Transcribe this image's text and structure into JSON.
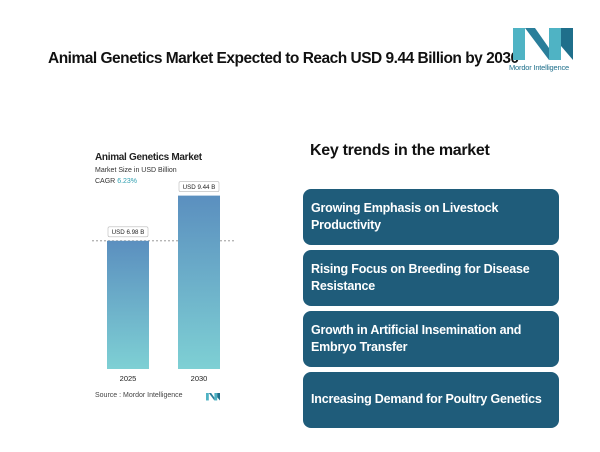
{
  "headline": "Animal Genetics Market Expected to Reach USD 9.44 Billion by 2030",
  "brand": {
    "name": "Mordor Intelligence",
    "color": "#1f6f8b",
    "accent": "#4fb3c4"
  },
  "chart_data": {
    "type": "bar",
    "title": "Animal Genetics Market",
    "subtitle": "Market Size in USD Billion",
    "cagr_label": "CAGR",
    "cagr_value": "6.23%",
    "categories": [
      "2025",
      "2030"
    ],
    "values": [
      6.98,
      9.44
    ],
    "data_labels": [
      "USD 6.98 B",
      "USD 9.44 B"
    ],
    "ylim": [
      0,
      10
    ],
    "reference_line_at": 6.98,
    "grid": false,
    "bar_colors": {
      "top": "#5b8fbf",
      "bottom": "#7ed0d4"
    }
  },
  "source": {
    "label": "Source :",
    "value": "Mordor Intelligence"
  },
  "trends": {
    "title": "Key trends in the market",
    "items": [
      "Growing Emphasis on Livestock Productivity",
      "Rising Focus on Breeding for Disease Resistance",
      "Growth in Artificial Insemination and Embryo Transfer",
      "Increasing Demand for Poultry Genetics"
    ]
  }
}
